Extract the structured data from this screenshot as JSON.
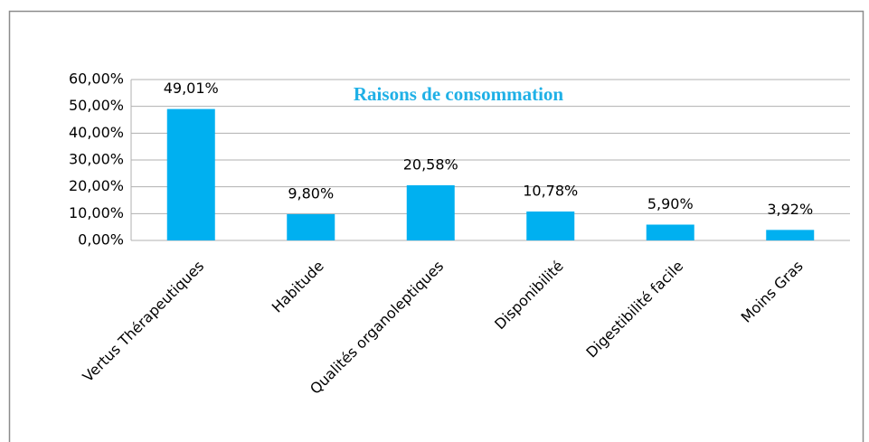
{
  "chart_data": {
    "type": "bar",
    "title": "Raisons de consommation",
    "categories": [
      "Vertus Thérapeutiques",
      "Habitude",
      "Qualités organoleptiques",
      "Disponibilité",
      "Digestibilité facile",
      "Moins Gras"
    ],
    "values": [
      49.01,
      9.8,
      20.58,
      10.78,
      5.9,
      3.92
    ],
    "value_labels": [
      "49,01%",
      "9,80%",
      "20,58%",
      "10,78%",
      "5,90%",
      "3,92%"
    ],
    "color": "#00b0f0",
    "ylim": [
      0,
      60
    ],
    "yticks": [
      {
        "value": 0,
        "label": "0,00%"
      },
      {
        "value": 10,
        "label": "10,00%"
      },
      {
        "value": 20,
        "label": "20,00%"
      },
      {
        "value": 30,
        "label": "30,00%"
      },
      {
        "value": 40,
        "label": "40,00%"
      },
      {
        "value": 50,
        "label": "50,00%"
      },
      {
        "value": 60,
        "label": "60,00%"
      }
    ],
    "grid": true
  }
}
